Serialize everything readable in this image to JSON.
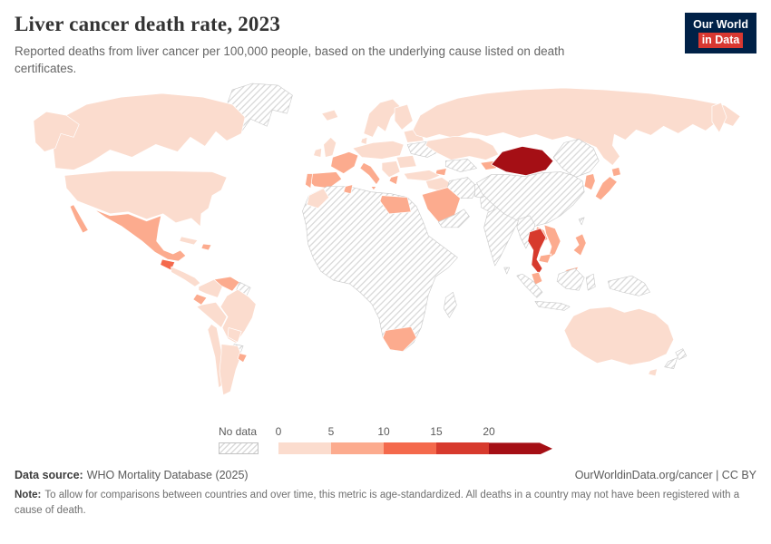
{
  "header": {
    "title": "Liver cancer death rate, 2023",
    "subtitle": "Reported deaths from liver cancer per 100,000 people, based on the underlying cause listed on death certificates.",
    "logo": {
      "line1": "Our World",
      "line2": "in Data",
      "bg": "#002147",
      "accent": "#d93831"
    }
  },
  "chart_data": {
    "type": "choropleth",
    "title": "Liver cancer death rate, 2023",
    "unit": "deaths per 100,000 people",
    "year": "2023",
    "legend": {
      "no_data_label": "No data",
      "ticks": [
        "0",
        "5",
        "10",
        "15",
        "20"
      ],
      "bins": [
        {
          "min": 0,
          "max": 5,
          "color": "#fbdcce"
        },
        {
          "min": 5,
          "max": 10,
          "color": "#fcab8e"
        },
        {
          "min": 10,
          "max": 15,
          "color": "#f4694c"
        },
        {
          "min": 15,
          "max": 20,
          "color": "#d73a2d"
        },
        {
          "min": 20,
          "max": 999,
          "color": "#a50f15"
        }
      ]
    },
    "values": {
      "canada": 3.6,
      "united-states": 4.6,
      "mexico": 6.8,
      "guatemala": 12.5,
      "central-america": 4.2,
      "cuba": 4.8,
      "dominican-republic": 5.6,
      "colombia": 3.9,
      "venezuela": 6.3,
      "ecuador": 6.6,
      "peru": 4.7,
      "brazil": 4.3,
      "bolivia": 4.4,
      "chile": 4.8,
      "argentina": 4.1,
      "uruguay": 5.4,
      "iceland": 3.7,
      "united-kingdom": 4.3,
      "ireland": 4.4,
      "scandinavia": 3.8,
      "finland": 4.9,
      "denmark": 4.7,
      "central-europe": 4.6,
      "france": 7.1,
      "spain": 6.3,
      "portugal": 6.9,
      "italy": 7.4,
      "balkans": 4.7,
      "greece": 6.1,
      "baltics-belarus": 4.4,
      "romania-bulgaria": 4.8,
      "turkey": 3.4,
      "russia": 4.2,
      "kazakhstan": 4.4,
      "kyrgyzstan": 8.6,
      "azerbaijan": 6.2,
      "iraq": 3.9,
      "saudi-arabia": 6.0,
      "egypt": 9.3,
      "tunisia": 5.7,
      "morocco": 4.0,
      "south-africa": 5.8,
      "mongolia": 33.3,
      "south-korea": 9.6,
      "japan": 7.2,
      "thailand": 15.8,
      "vietnam": 9.7,
      "laos": 9.0,
      "cambodia": 9.2,
      "malaysia": 6.4,
      "philippines": 8.3,
      "australia": 4.7
    },
    "no_data_areas": [
      "Greenland",
      "Guyana & Suriname",
      "Paraguay",
      "Ukraine",
      "Most of Africa",
      "Madagascar",
      "Iran",
      "Uzbekistan & Turkmenistan",
      "Afghanistan",
      "Pakistan",
      "India",
      "Sri Lanka",
      "Yemen & Oman",
      "China",
      "Taiwan",
      "Myanmar",
      "Indonesia",
      "Papua New Guinea",
      "New Zealand"
    ]
  },
  "footer": {
    "source_label": "Data source:",
    "source": "WHO Mortality Database (2025)",
    "credit": "OurWorldinData.org/cancer | CC BY",
    "note_label": "Note:",
    "note": "To allow for comparisons between countries and over time, this metric is age-standardized. All deaths in a country may not have been registered with a cause of death."
  }
}
